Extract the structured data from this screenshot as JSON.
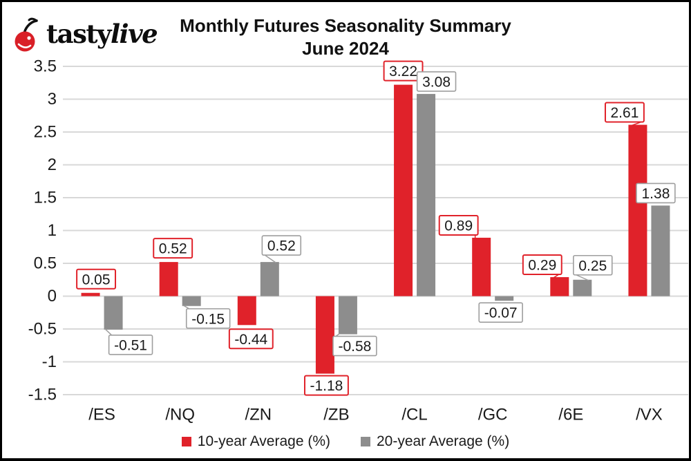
{
  "logo": {
    "brand_tasty": "tasty",
    "brand_live": "live",
    "cherry_color": "#d91f27"
  },
  "title": {
    "line1": "Monthly Futures Seasonality Summary",
    "line2": "June 2024"
  },
  "chart_data": {
    "type": "bar",
    "title": "Monthly Futures Seasonality Summary June 2024",
    "categories": [
      "/ES",
      "/NQ",
      "/ZN",
      "/ZB",
      "/CL",
      "/GC",
      "/6E",
      "/VX"
    ],
    "series": [
      {
        "name": "10-year Average (%)",
        "color": "#e0222a",
        "values": [
          0.05,
          0.52,
          -0.44,
          -1.18,
          3.22,
          0.89,
          0.29,
          2.61
        ]
      },
      {
        "name": "20-year Average (%)",
        "color": "#8d8d8d",
        "values": [
          -0.51,
          -0.15,
          0.52,
          -0.58,
          3.08,
          -0.07,
          0.25,
          1.38
        ]
      }
    ],
    "ylim": [
      -1.5,
      3.5
    ],
    "yticks": [
      3.5,
      3,
      2.5,
      2,
      1.5,
      1,
      0.5,
      0,
      -0.5,
      -1,
      -1.5
    ],
    "grid": true,
    "legend_position": "bottom",
    "data_labels": true,
    "colors": {
      "grid": "#d8d8d8",
      "text": "#1a1a1a",
      "gray_box_border": "#9e9e9e",
      "label_box_fill": "#ffffff"
    }
  }
}
